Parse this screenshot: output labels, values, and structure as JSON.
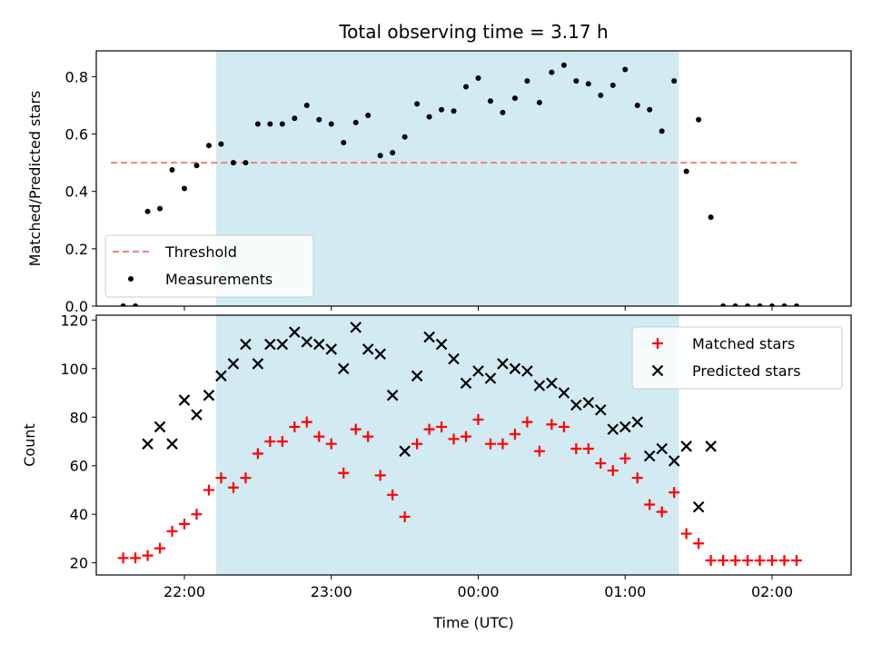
{
  "chart_data": [
    {
      "type": "scatter",
      "title": "Total observing time = 3.17 h",
      "ylabel": "Matched/Predicted stars",
      "xlabel": "",
      "ylim": [
        0,
        0.89
      ],
      "yticks": [
        "0.0",
        "0.2",
        "0.4",
        "0.6",
        "0.8"
      ],
      "legend_position": "lower-left",
      "shaded_interval": [
        "22:13",
        "01:22"
      ],
      "shade_color": "#add8e6",
      "threshold": {
        "name": "Threshold",
        "value": 0.5,
        "x_range": [
          "21:30",
          "02:10"
        ],
        "color": "#f08080",
        "style": "dashed"
      },
      "series": [
        {
          "name": "Measurements",
          "color": "#000000",
          "marker": "dot",
          "points": [
            [
              "21:35",
              0.0
            ],
            [
              "21:40",
              0.0
            ],
            [
              "21:45",
              0.33
            ],
            [
              "21:50",
              0.34
            ],
            [
              "21:55",
              0.475
            ],
            [
              "22:00",
              0.41
            ],
            [
              "22:05",
              0.49
            ],
            [
              "22:10",
              0.56
            ],
            [
              "22:15",
              0.565
            ],
            [
              "22:20",
              0.5
            ],
            [
              "22:25",
              0.5
            ],
            [
              "22:30",
              0.635
            ],
            [
              "22:35",
              0.635
            ],
            [
              "22:40",
              0.635
            ],
            [
              "22:45",
              0.655
            ],
            [
              "22:50",
              0.7
            ],
            [
              "22:55",
              0.65
            ],
            [
              "23:00",
              0.635
            ],
            [
              "23:05",
              0.57
            ],
            [
              "23:10",
              0.64
            ],
            [
              "23:15",
              0.665
            ],
            [
              "23:20",
              0.525
            ],
            [
              "23:25",
              0.535
            ],
            [
              "23:30",
              0.59
            ],
            [
              "23:35",
              0.705
            ],
            [
              "23:40",
              0.66
            ],
            [
              "23:45",
              0.685
            ],
            [
              "23:50",
              0.68
            ],
            [
              "23:55",
              0.765
            ],
            [
              "00:00",
              0.795
            ],
            [
              "00:05",
              0.715
            ],
            [
              "00:10",
              0.675
            ],
            [
              "00:15",
              0.725
            ],
            [
              "00:20",
              0.785
            ],
            [
              "00:25",
              0.71
            ],
            [
              "00:30",
              0.815
            ],
            [
              "00:35",
              0.84
            ],
            [
              "00:40",
              0.785
            ],
            [
              "00:45",
              0.775
            ],
            [
              "00:50",
              0.735
            ],
            [
              "00:55",
              0.77
            ],
            [
              "01:00",
              0.825
            ],
            [
              "01:05",
              0.7
            ],
            [
              "01:10",
              0.685
            ],
            [
              "01:15",
              0.61
            ],
            [
              "01:20",
              0.785
            ],
            [
              "01:25",
              0.47
            ],
            [
              "01:30",
              0.65
            ],
            [
              "01:35",
              0.31
            ],
            [
              "01:40",
              0.0
            ],
            [
              "01:45",
              0.0
            ],
            [
              "01:50",
              0.0
            ],
            [
              "01:55",
              0.0
            ],
            [
              "02:00",
              0.0
            ],
            [
              "02:05",
              0.0
            ],
            [
              "02:10",
              0.0
            ]
          ]
        }
      ]
    },
    {
      "type": "scatter",
      "title": "",
      "xlabel": "Time (UTC)",
      "ylabel": "Count",
      "ylim": [
        15,
        122
      ],
      "yticks": [
        "20",
        "40",
        "60",
        "80",
        "100",
        "120"
      ],
      "xticks": [
        "22:00",
        "23:00",
        "00:00",
        "01:00",
        "02:00"
      ],
      "legend_position": "upper-right",
      "shaded_interval": [
        "22:13",
        "01:22"
      ],
      "shade_color": "#add8e6",
      "series": [
        {
          "name": "Matched stars",
          "color": "#ff0000",
          "marker": "plus",
          "points": [
            [
              "21:35",
              22
            ],
            [
              "21:40",
              22
            ],
            [
              "21:45",
              23
            ],
            [
              "21:50",
              26
            ],
            [
              "21:55",
              33
            ],
            [
              "22:00",
              36
            ],
            [
              "22:05",
              40
            ],
            [
              "22:10",
              50
            ],
            [
              "22:15",
              55
            ],
            [
              "22:20",
              51
            ],
            [
              "22:25",
              55
            ],
            [
              "22:30",
              65
            ],
            [
              "22:35",
              70
            ],
            [
              "22:40",
              70
            ],
            [
              "22:45",
              76
            ],
            [
              "22:50",
              78
            ],
            [
              "22:55",
              72
            ],
            [
              "23:00",
              69
            ],
            [
              "23:05",
              57
            ],
            [
              "23:10",
              75
            ],
            [
              "23:15",
              72
            ],
            [
              "23:20",
              56
            ],
            [
              "23:25",
              48
            ],
            [
              "23:30",
              39
            ],
            [
              "23:35",
              69
            ],
            [
              "23:40",
              75
            ],
            [
              "23:45",
              76
            ],
            [
              "23:50",
              71
            ],
            [
              "23:55",
              72
            ],
            [
              "00:00",
              79
            ],
            [
              "00:05",
              69
            ],
            [
              "00:10",
              69
            ],
            [
              "00:15",
              73
            ],
            [
              "00:20",
              78
            ],
            [
              "00:25",
              66
            ],
            [
              "00:30",
              77
            ],
            [
              "00:35",
              76
            ],
            [
              "00:40",
              67
            ],
            [
              "00:45",
              67
            ],
            [
              "00:50",
              61
            ],
            [
              "00:55",
              58
            ],
            [
              "01:00",
              63
            ],
            [
              "01:05",
              55
            ],
            [
              "01:10",
              44
            ],
            [
              "01:15",
              41
            ],
            [
              "01:20",
              49
            ],
            [
              "01:25",
              32
            ],
            [
              "01:30",
              28
            ],
            [
              "01:35",
              21
            ],
            [
              "01:40",
              21
            ],
            [
              "01:45",
              21
            ],
            [
              "01:50",
              21
            ],
            [
              "01:55",
              21
            ],
            [
              "02:00",
              21
            ],
            [
              "02:05",
              21
            ],
            [
              "02:10",
              21
            ]
          ]
        },
        {
          "name": "Predicted stars",
          "color": "#000000",
          "marker": "x",
          "points": [
            [
              "21:45",
              69
            ],
            [
              "21:50",
              76
            ],
            [
              "21:55",
              69
            ],
            [
              "22:00",
              87
            ],
            [
              "22:05",
              81
            ],
            [
              "22:10",
              89
            ],
            [
              "22:15",
              97
            ],
            [
              "22:20",
              102
            ],
            [
              "22:25",
              110
            ],
            [
              "22:30",
              102
            ],
            [
              "22:35",
              110
            ],
            [
              "22:40",
              110
            ],
            [
              "22:45",
              115
            ],
            [
              "22:50",
              111
            ],
            [
              "22:55",
              110
            ],
            [
              "23:00",
              108
            ],
            [
              "23:05",
              100
            ],
            [
              "23:10",
              117
            ],
            [
              "23:15",
              108
            ],
            [
              "23:20",
              106
            ],
            [
              "23:25",
              89
            ],
            [
              "23:30",
              66
            ],
            [
              "23:35",
              97
            ],
            [
              "23:40",
              113
            ],
            [
              "23:45",
              110
            ],
            [
              "23:50",
              104
            ],
            [
              "23:55",
              94
            ],
            [
              "00:00",
              99
            ],
            [
              "00:05",
              96
            ],
            [
              "00:10",
              102
            ],
            [
              "00:15",
              100
            ],
            [
              "00:20",
              99
            ],
            [
              "00:25",
              93
            ],
            [
              "00:30",
              94
            ],
            [
              "00:35",
              90
            ],
            [
              "00:40",
              85
            ],
            [
              "00:45",
              86
            ],
            [
              "00:50",
              83
            ],
            [
              "00:55",
              75
            ],
            [
              "01:00",
              76
            ],
            [
              "01:05",
              78
            ],
            [
              "01:10",
              64
            ],
            [
              "01:15",
              67
            ],
            [
              "01:20",
              62
            ],
            [
              "01:25",
              68
            ],
            [
              "01:30",
              43
            ],
            [
              "01:35",
              68
            ]
          ]
        }
      ]
    }
  ]
}
